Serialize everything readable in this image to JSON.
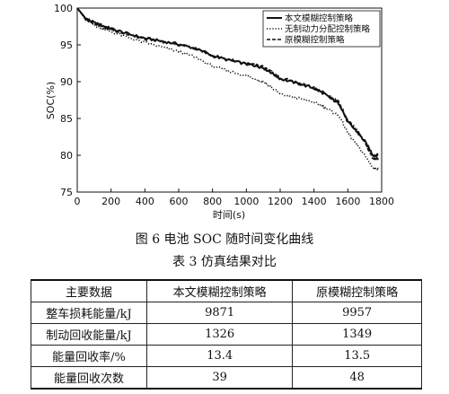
{
  "chart_data": {
    "type": "line",
    "title": "",
    "xlabel": "时间(s)",
    "ylabel": "SOC(%)",
    "xlim": [
      0,
      1800
    ],
    "ylim": [
      75,
      100
    ],
    "xticks": [
      0,
      200,
      400,
      600,
      800,
      1000,
      1200,
      1400,
      1600,
      1800
    ],
    "yticks": [
      75,
      80,
      85,
      90,
      95,
      100
    ],
    "grid": false,
    "legend_placement": "top-right",
    "series": [
      {
        "name": "本文模糊控制策略",
        "style": "solid",
        "x": [
          0,
          50,
          100,
          150,
          200,
          300,
          400,
          500,
          600,
          700,
          800,
          900,
          1000,
          1050,
          1100,
          1150,
          1200,
          1300,
          1400,
          1450,
          1500,
          1550,
          1600,
          1650,
          1700,
          1750,
          1780
        ],
        "y": [
          100,
          98.6,
          98.0,
          97.6,
          97.2,
          96.5,
          95.9,
          95.5,
          95.1,
          94.5,
          93.5,
          92.9,
          92.4,
          92.2,
          91.9,
          91.2,
          90.4,
          89.8,
          89.1,
          88.5,
          87.7,
          87.0,
          84.5,
          83.3,
          81.9,
          80.0,
          80.0
        ]
      },
      {
        "name": "无制动力分配控制策略",
        "style": "dotted",
        "x": [
          0,
          50,
          100,
          150,
          200,
          300,
          400,
          500,
          600,
          700,
          800,
          900,
          1000,
          1050,
          1100,
          1150,
          1200,
          1300,
          1400,
          1450,
          1500,
          1550,
          1600,
          1650,
          1700,
          1750,
          1780
        ],
        "y": [
          100,
          98.4,
          97.7,
          97.2,
          96.8,
          96.0,
          95.3,
          94.7,
          94.1,
          93.3,
          92.1,
          91.4,
          90.8,
          90.4,
          90.0,
          89.2,
          88.3,
          87.8,
          87.2,
          86.7,
          86.0,
          85.3,
          83.0,
          81.5,
          80.0,
          78.3,
          78.2
        ]
      },
      {
        "name": "原模糊控制策略",
        "style": "dashed",
        "x": [
          0,
          50,
          100,
          150,
          200,
          300,
          400,
          500,
          600,
          700,
          800,
          900,
          1000,
          1050,
          1100,
          1150,
          1200,
          1300,
          1400,
          1450,
          1500,
          1550,
          1600,
          1650,
          1700,
          1750,
          1780
        ],
        "y": [
          100,
          98.5,
          97.9,
          97.5,
          97.1,
          96.4,
          95.8,
          95.4,
          95.0,
          94.5,
          93.6,
          93.0,
          92.5,
          92.3,
          92.0,
          91.3,
          90.5,
          89.9,
          89.2,
          88.6,
          87.9,
          87.2,
          84.7,
          83.5,
          81.8,
          79.5,
          79.6
        ]
      }
    ]
  },
  "figure_caption": "图 6 电池 SOC 随时间变化曲线",
  "table_caption": "表 3 仿真结果对比",
  "table": {
    "headers": [
      "主要数据",
      "本文模糊控制策略",
      "原模糊控制策略"
    ],
    "rows": [
      [
        "整车损耗能量/kJ",
        "9871",
        "9957"
      ],
      [
        "制动回收能量/kJ",
        "1326",
        "1349"
      ],
      [
        "能量回收率/%",
        "13.4",
        "13.5"
      ],
      [
        "能量回收次数",
        "39",
        "48"
      ]
    ]
  }
}
